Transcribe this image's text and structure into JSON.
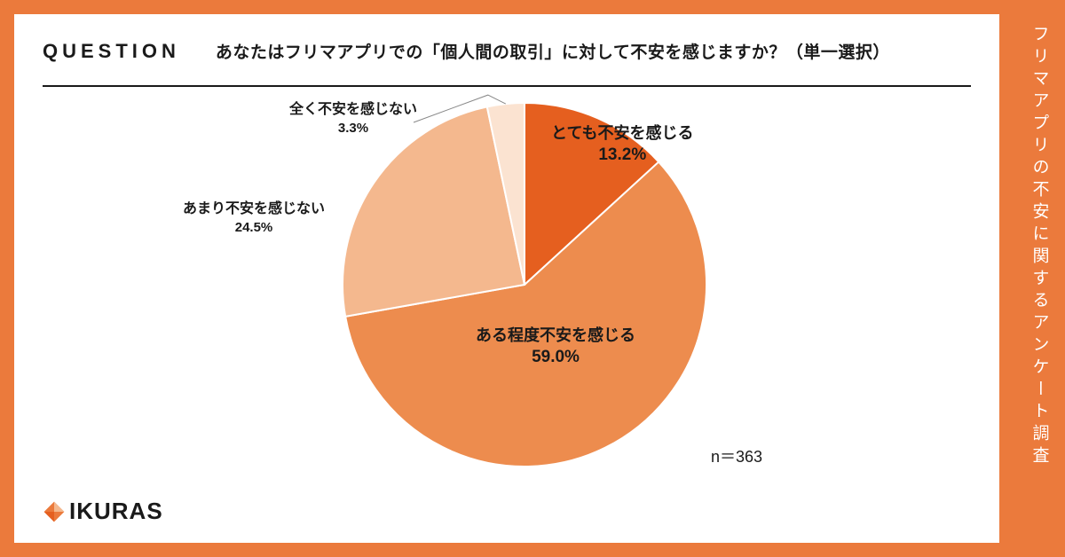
{
  "sidebar_title": "フリマアプリの不安に関するアンケート調査",
  "question_label": "QUESTION",
  "question_text": "あなたはフリマアプリでの「個人間の取引」に対して不安を感じますか？（単一選択）",
  "n_label": "n＝363",
  "brand_name": "IKURAS",
  "chart": {
    "type": "pie",
    "background_color": "#ffffff",
    "frame_color": "#eb7a3c",
    "stroke_color": "#ffffff",
    "stroke_width": 2,
    "radius": 205,
    "start_angle_deg": -90,
    "slices": [
      {
        "label": "とても不安を感じる",
        "value": 13.2,
        "color": "#e55f1f",
        "pct_text": "13.2%"
      },
      {
        "label": "ある程度不安を感じる",
        "value": 59.0,
        "color": "#ed8c4e",
        "pct_text": "59.0%"
      },
      {
        "label": "あまり不安を感じない",
        "value": 24.5,
        "color": "#f4b88e",
        "pct_text": "24.5%"
      },
      {
        "label": "全く不安を感じない",
        "value": 3.3,
        "color": "#fbe3d1",
        "pct_text": "3.3%"
      }
    ],
    "label_fontsize_main": 18,
    "label_fontsize_pct": 19,
    "callout_fontsize": 16
  },
  "colors": {
    "text": "#1a1a1a",
    "accent": "#eb7a3c",
    "divider": "#1a1a1a",
    "leader": "#888888"
  }
}
